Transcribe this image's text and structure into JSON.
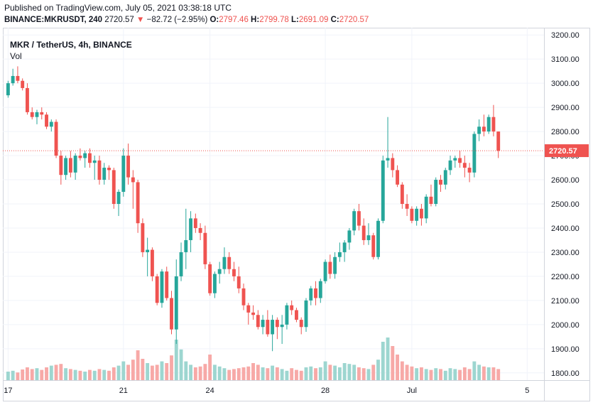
{
  "header": {
    "published": "Published on TradingView.com, July 05, 2021 03:38:18 UTC",
    "symbol": "BINANCE:MKRUSDT, 240",
    "last": "2720.57",
    "change_arrow": "▼",
    "change": "−82.72 (−2.95%)",
    "o_label": "O:",
    "o_value": "2797.46",
    "h_label": "H:",
    "h_value": "2799.78",
    "l_label": "L:",
    "l_value": "2691.09",
    "c_label": "C:",
    "c_value": "2720.57"
  },
  "legend": {
    "title": "MKR / TetherUS, 4h, BINANCE",
    "volume_label": "Vol"
  },
  "colors": {
    "up": "#26a69a",
    "down": "#ef5350",
    "up_vol": "#9dd6d0",
    "down_vol": "#f7a9a7",
    "grid": "#f0f3fa",
    "price_line": "#ef5350"
  },
  "chart_data": {
    "type": "candlestick",
    "timeframe": "4h",
    "y_axis": {
      "range": [
        1770,
        3230
      ],
      "ticks": [
        1800,
        1900,
        2000,
        2100,
        2200,
        2300,
        2400,
        2500,
        2600,
        2700,
        2800,
        2900,
        3000,
        3100,
        3200
      ],
      "tick_labels": [
        "1800.00",
        "1900.00",
        "2000.00",
        "2100.00",
        "2200.00",
        "2300.00",
        "2400.00",
        "2500.00",
        "2600.00",
        "2700.00",
        "2800.00",
        "2900.00",
        "3000.00",
        "3100.00",
        "3200.00"
      ]
    },
    "x_axis": {
      "tick_labels": [
        {
          "label": "17",
          "bar_index": 0
        },
        {
          "label": "21",
          "bar_index": 24
        },
        {
          "label": "24",
          "bar_index": 42
        },
        {
          "label": "28",
          "bar_index": 66
        },
        {
          "label": "Jul",
          "bar_index": 84
        },
        {
          "label": "5",
          "bar_index": 108
        }
      ],
      "right_padding_bars": 9
    },
    "last_price": 2720.57,
    "last_price_label": "2720.57",
    "volume_range": [
      0,
      100
    ],
    "candles": [
      [
        2950,
        3010,
        2940,
        3000,
        20
      ],
      [
        3000,
        3060,
        2990,
        3030,
        22
      ],
      [
        3030,
        3070,
        3000,
        3010,
        18
      ],
      [
        3010,
        3020,
        2970,
        2980,
        25
      ],
      [
        2980,
        3000,
        2870,
        2880,
        30
      ],
      [
        2880,
        2900,
        2850,
        2860,
        26
      ],
      [
        2860,
        2890,
        2830,
        2880,
        28
      ],
      [
        2880,
        2900,
        2850,
        2870,
        24
      ],
      [
        2870,
        2880,
        2810,
        2820,
        30
      ],
      [
        2820,
        2850,
        2800,
        2840,
        34
      ],
      [
        2840,
        2850,
        2690,
        2700,
        36
      ],
      [
        2700,
        2720,
        2580,
        2620,
        38
      ],
      [
        2620,
        2700,
        2600,
        2690,
        28
      ],
      [
        2690,
        2720,
        2610,
        2630,
        26
      ],
      [
        2630,
        2710,
        2600,
        2700,
        24
      ],
      [
        2700,
        2730,
        2680,
        2690,
        22
      ],
      [
        2690,
        2720,
        2650,
        2710,
        20
      ],
      [
        2710,
        2730,
        2650,
        2670,
        24
      ],
      [
        2670,
        2700,
        2600,
        2680,
        22
      ],
      [
        2680,
        2700,
        2580,
        2600,
        26
      ],
      [
        2600,
        2670,
        2580,
        2650,
        24
      ],
      [
        2650,
        2660,
        2600,
        2640,
        22
      ],
      [
        2640,
        2650,
        2480,
        2500,
        30
      ],
      [
        2500,
        2560,
        2450,
        2550,
        34
      ],
      [
        2550,
        2730,
        2530,
        2700,
        44
      ],
      [
        2700,
        2750,
        2580,
        2610,
        36
      ],
      [
        2610,
        2640,
        2480,
        2590,
        48
      ],
      [
        2590,
        2600,
        2380,
        2420,
        70
      ],
      [
        2420,
        2440,
        2280,
        2300,
        50
      ],
      [
        2300,
        2360,
        2200,
        2310,
        40
      ],
      [
        2310,
        2320,
        2180,
        2200,
        34
      ],
      [
        2200,
        2210,
        2080,
        2090,
        36
      ],
      [
        2090,
        2230,
        2070,
        2220,
        44
      ],
      [
        2220,
        2240,
        2100,
        2110,
        40
      ],
      [
        2110,
        2140,
        1960,
        1980,
        58
      ],
      [
        1980,
        2270,
        1920,
        2200,
        95
      ],
      [
        2200,
        2340,
        2180,
        2300,
        72
      ],
      [
        2300,
        2480,
        2230,
        2350,
        44
      ],
      [
        2350,
        2470,
        2300,
        2440,
        36
      ],
      [
        2440,
        2460,
        2380,
        2400,
        30
      ],
      [
        2400,
        2420,
        2350,
        2380,
        32
      ],
      [
        2380,
        2410,
        2230,
        2250,
        38
      ],
      [
        2250,
        2260,
        2120,
        2130,
        60
      ],
      [
        2130,
        2220,
        2110,
        2210,
        36
      ],
      [
        2210,
        2260,
        2170,
        2230,
        32
      ],
      [
        2230,
        2320,
        2210,
        2280,
        28
      ],
      [
        2280,
        2300,
        2210,
        2230,
        24
      ],
      [
        2230,
        2260,
        2180,
        2200,
        26
      ],
      [
        2200,
        2240,
        2130,
        2150,
        28
      ],
      [
        2150,
        2170,
        2060,
        2080,
        30
      ],
      [
        2080,
        2090,
        2000,
        2050,
        32
      ],
      [
        2050,
        2080,
        2020,
        2040,
        40
      ],
      [
        2040,
        2060,
        1980,
        1990,
        36
      ],
      [
        1990,
        2040,
        1960,
        2020,
        30
      ],
      [
        2020,
        2060,
        1950,
        1960,
        28
      ],
      [
        1960,
        2040,
        1890,
        2020,
        34
      ],
      [
        2020,
        2030,
        1940,
        1990,
        30
      ],
      [
        1990,
        2040,
        1920,
        2000,
        26
      ],
      [
        2000,
        2090,
        1980,
        2080,
        22
      ],
      [
        2080,
        2100,
        2040,
        2060,
        28
      ],
      [
        2060,
        2070,
        2010,
        2020,
        24
      ],
      [
        2020,
        2030,
        1960,
        1990,
        22
      ],
      [
        1990,
        2110,
        1970,
        2100,
        30
      ],
      [
        2100,
        2160,
        2080,
        2150,
        32
      ],
      [
        2150,
        2180,
        2080,
        2110,
        28
      ],
      [
        2110,
        2190,
        2090,
        2180,
        30
      ],
      [
        2180,
        2270,
        2170,
        2260,
        44
      ],
      [
        2260,
        2290,
        2190,
        2210,
        36
      ],
      [
        2210,
        2300,
        2190,
        2280,
        34
      ],
      [
        2280,
        2340,
        2260,
        2300,
        30
      ],
      [
        2300,
        2350,
        2260,
        2340,
        40
      ],
      [
        2340,
        2400,
        2310,
        2390,
        38
      ],
      [
        2390,
        2480,
        2370,
        2470,
        36
      ],
      [
        2470,
        2500,
        2390,
        2410,
        30
      ],
      [
        2410,
        2440,
        2330,
        2350,
        28
      ],
      [
        2350,
        2420,
        2330,
        2370,
        26
      ],
      [
        2370,
        2380,
        2270,
        2280,
        36
      ],
      [
        2280,
        2440,
        2270,
        2430,
        48
      ],
      [
        2430,
        2700,
        2420,
        2680,
        90
      ],
      [
        2680,
        2860,
        2650,
        2690,
        100
      ],
      [
        2690,
        2710,
        2610,
        2640,
        80
      ],
      [
        2640,
        2660,
        2570,
        2580,
        60
      ],
      [
        2580,
        2590,
        2480,
        2500,
        44
      ],
      [
        2500,
        2540,
        2450,
        2480,
        36
      ],
      [
        2480,
        2490,
        2420,
        2430,
        32
      ],
      [
        2430,
        2490,
        2410,
        2480,
        28
      ],
      [
        2480,
        2500,
        2410,
        2440,
        30
      ],
      [
        2440,
        2540,
        2420,
        2530,
        26
      ],
      [
        2530,
        2580,
        2490,
        2500,
        24
      ],
      [
        2500,
        2610,
        2490,
        2600,
        28
      ],
      [
        2600,
        2620,
        2550,
        2580,
        26
      ],
      [
        2580,
        2650,
        2560,
        2640,
        22
      ],
      [
        2640,
        2700,
        2620,
        2680,
        28
      ],
      [
        2680,
        2700,
        2650,
        2690,
        26
      ],
      [
        2690,
        2720,
        2650,
        2670,
        24
      ],
      [
        2670,
        2700,
        2610,
        2650,
        30
      ],
      [
        2650,
        2670,
        2590,
        2630,
        26
      ],
      [
        2630,
        2800,
        2610,
        2790,
        44
      ],
      [
        2790,
        2850,
        2760,
        2820,
        36
      ],
      [
        2820,
        2870,
        2780,
        2800,
        32
      ],
      [
        2800,
        2870,
        2790,
        2860,
        30
      ],
      [
        2860,
        2910,
        2780,
        2800,
        30
      ],
      [
        2800,
        2800,
        2690,
        2720,
        26
      ]
    ]
  }
}
